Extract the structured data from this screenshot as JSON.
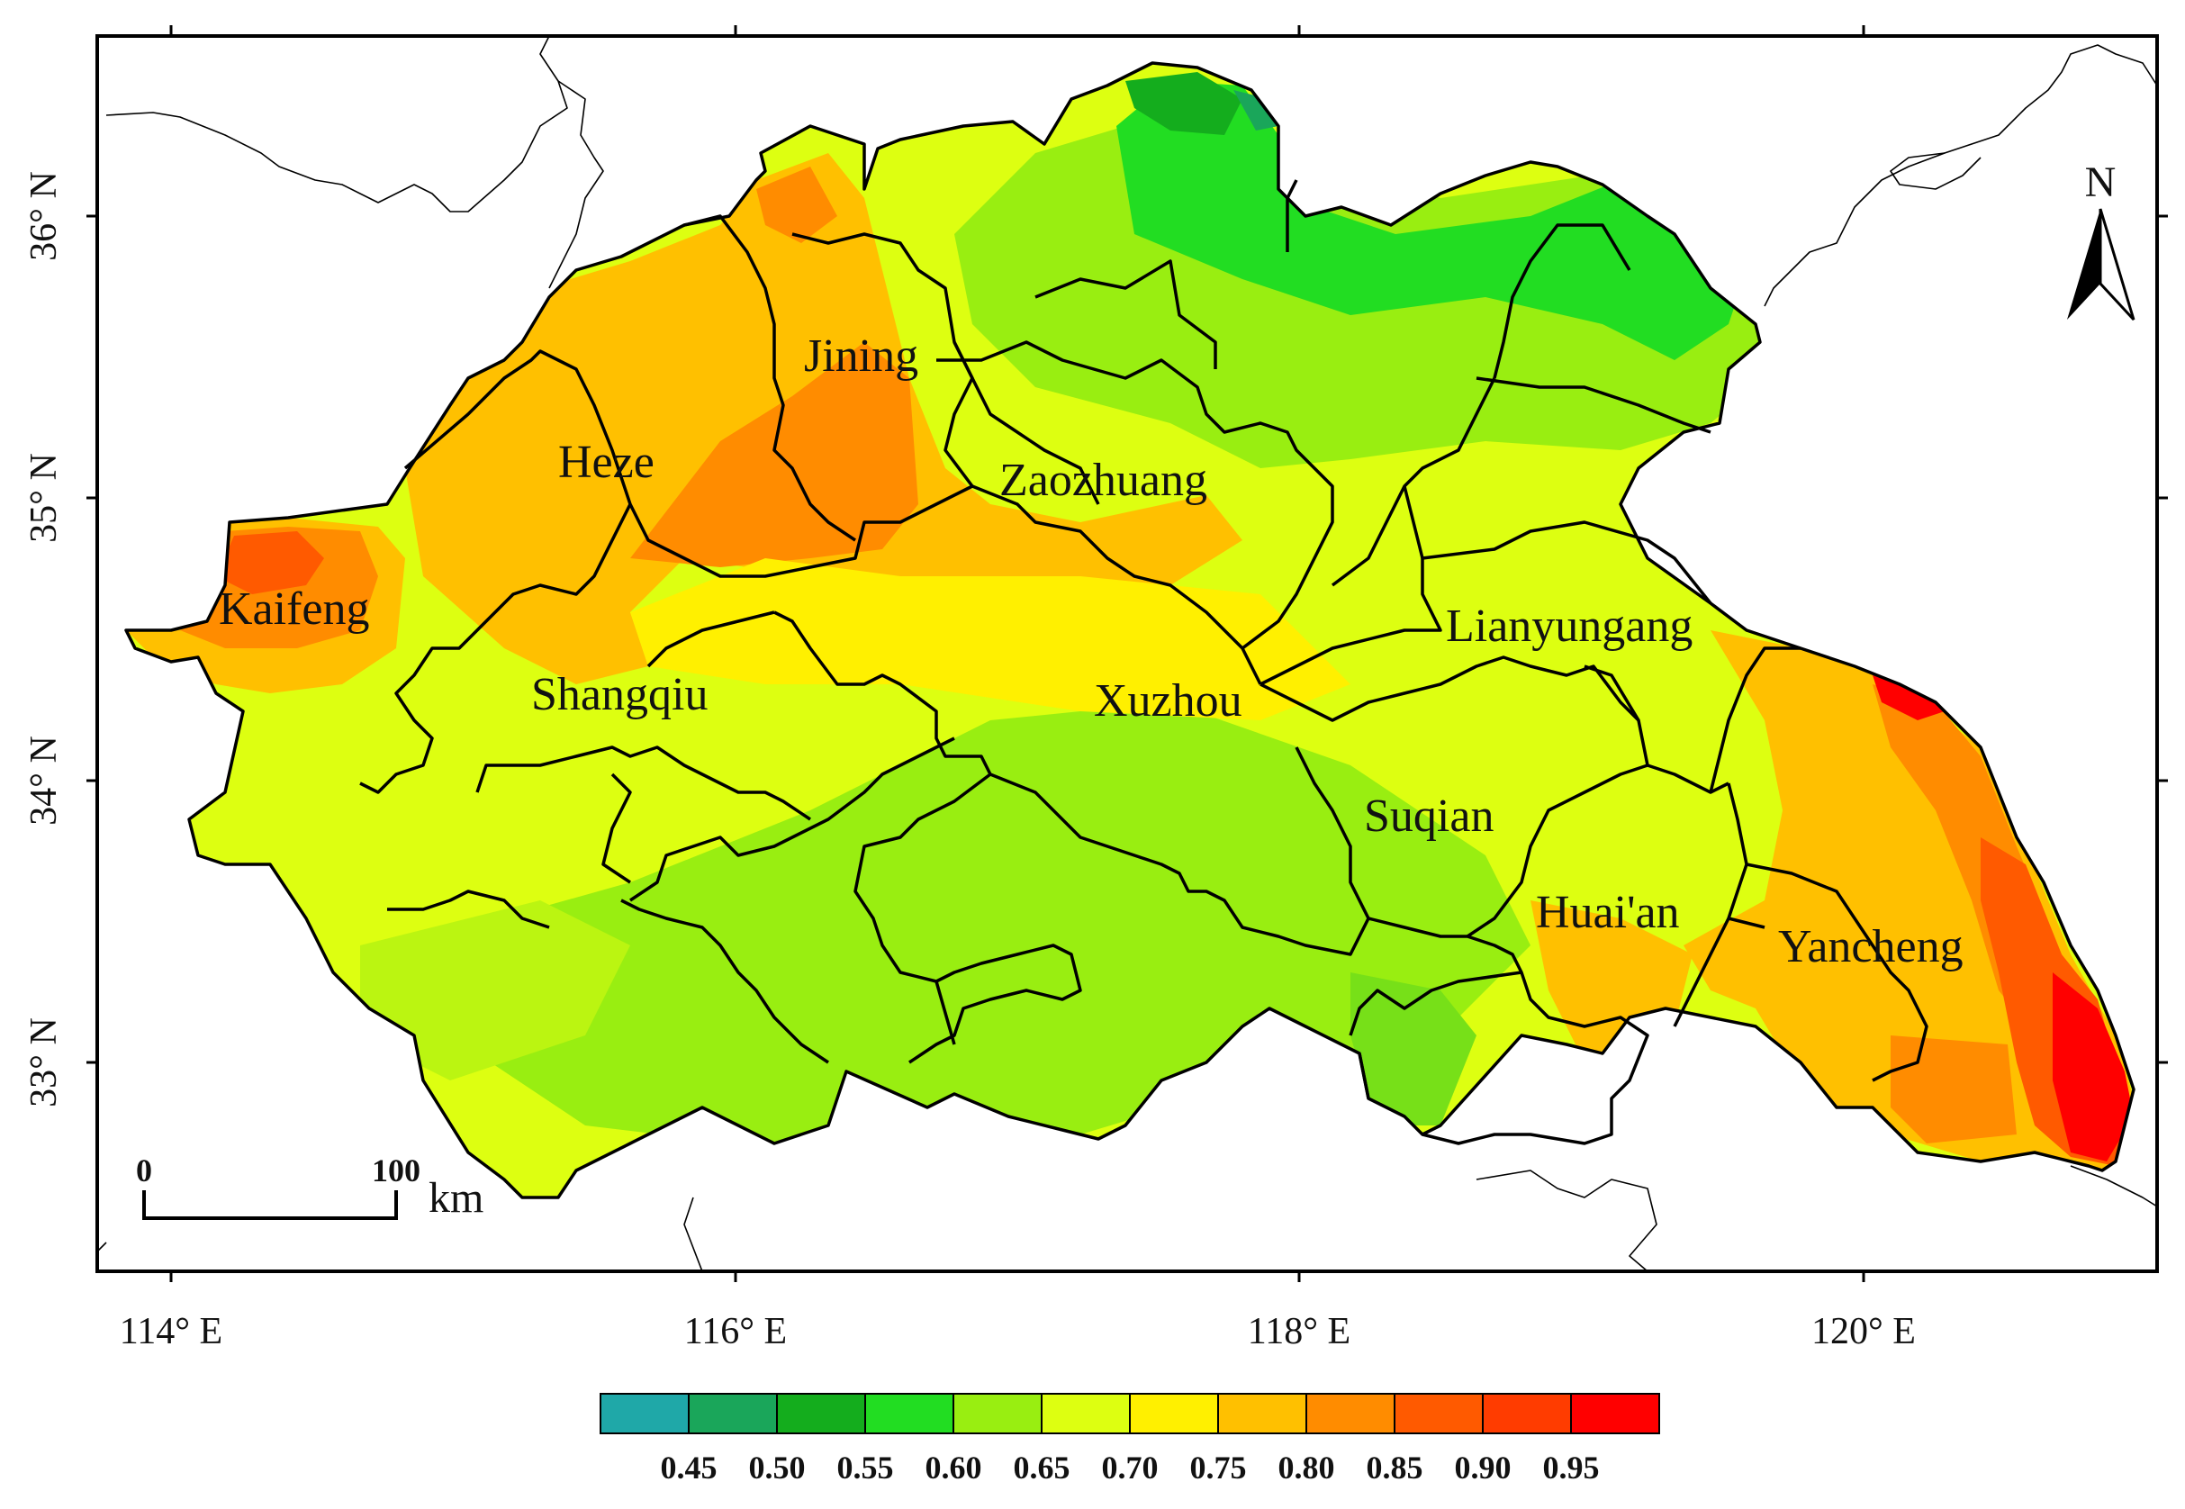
{
  "map": {
    "x_ticks": [
      "114° E",
      "116° E",
      "118° E",
      "120° E"
    ],
    "y_ticks": [
      "36° N",
      "35° N",
      "34° N",
      "33° N"
    ],
    "cities": [
      "Jining",
      "Heze",
      "Zaozhuang",
      "Kaifeng",
      "Shangqiu",
      "Xuzhou",
      "Lianyungang",
      "Suqian",
      "Huai'an",
      "Yancheng"
    ],
    "north_label": "N",
    "scale_bar": {
      "start": "0",
      "end": "100",
      "unit": "km"
    }
  },
  "legend": {
    "colors": [
      "#1fa8a8",
      "#1aa65a",
      "#14ad1d",
      "#22dd22",
      "#99ee11",
      "#ddff11",
      "#fff000",
      "#ffc000",
      "#ff8c00",
      "#ff5a00",
      "#ff3c00",
      "#ff0000"
    ],
    "labels": [
      "0.45",
      "0.50",
      "0.55",
      "0.60",
      "0.65",
      "0.70",
      "0.75",
      "0.80",
      "0.85",
      "0.90",
      "0.95"
    ]
  }
}
